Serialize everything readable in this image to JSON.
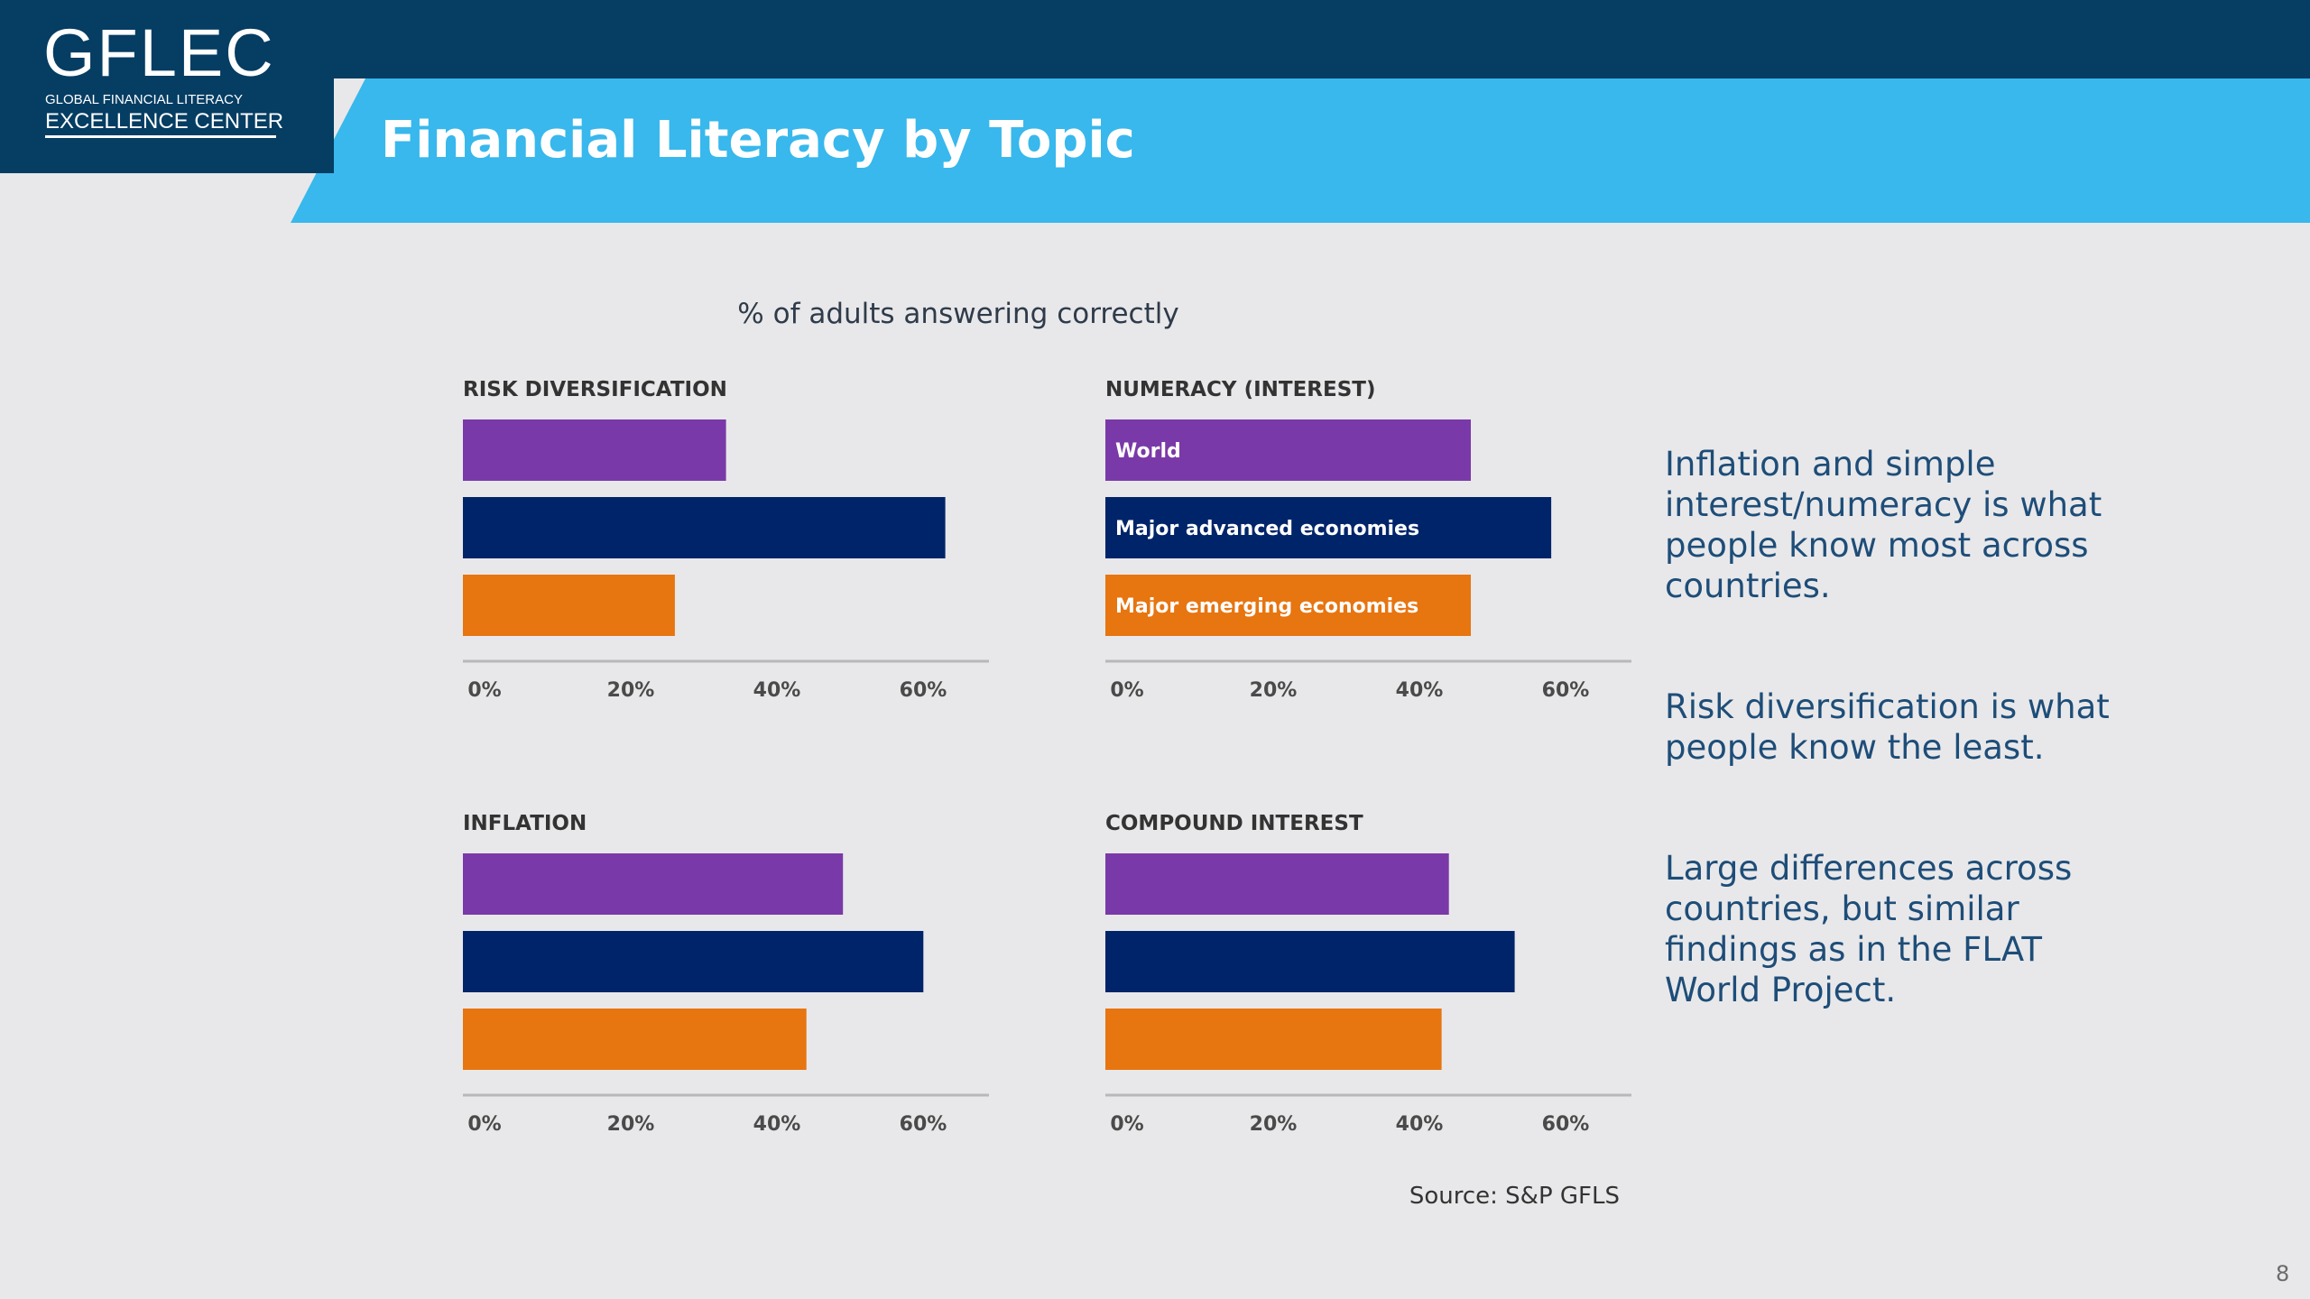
{
  "logo": {
    "main": "GFLEC",
    "small": "GLOBAL FINANCIAL LITERACY",
    "sub": "EXCELLENCE CENTER"
  },
  "slide_title": "Financial Literacy by Topic",
  "chart_subtitle": "% of adults answering correctly",
  "colors": {
    "header_dark": "#053d63",
    "header_light": "#38b8ec",
    "background": "#e8e8ea",
    "world": "#7a39a8",
    "advanced": "#00246a",
    "emerging": "#e77510",
    "axis": "#b8b8bc",
    "text_dark": "#333333",
    "callout_text": "#1e4d78"
  },
  "chart_data": [
    {
      "type": "bar",
      "orientation": "horizontal",
      "title": "RISK DIVERSIFICATION",
      "categories": [
        "World",
        "Major advanced economies",
        "Major emerging economies"
      ],
      "values": [
        36,
        66,
        29
      ],
      "unit": "%",
      "xlim": [
        0,
        72
      ],
      "ticks": [
        "0%",
        "20%",
        "40%",
        "60%"
      ],
      "tick_values": [
        0,
        20,
        40,
        60
      ],
      "category_labels_shown": false,
      "grid": false
    },
    {
      "type": "bar",
      "orientation": "horizontal",
      "title": "NUMERACY (INTEREST)",
      "categories": [
        "World",
        "Major advanced economies",
        "Major emerging economies"
      ],
      "values": [
        50,
        61,
        50
      ],
      "unit": "%",
      "xlim": [
        0,
        72
      ],
      "ticks": [
        "0%",
        "20%",
        "40%",
        "60%"
      ],
      "tick_values": [
        0,
        20,
        40,
        60
      ],
      "category_labels_shown": true,
      "grid": false
    },
    {
      "type": "bar",
      "orientation": "horizontal",
      "title": "INFLATION",
      "categories": [
        "World",
        "Major advanced economies",
        "Major emerging economies"
      ],
      "values": [
        52,
        63,
        47
      ],
      "unit": "%",
      "xlim": [
        0,
        72
      ],
      "ticks": [
        "0%",
        "20%",
        "40%",
        "60%"
      ],
      "tick_values": [
        0,
        20,
        40,
        60
      ],
      "category_labels_shown": false,
      "grid": false
    },
    {
      "type": "bar",
      "orientation": "horizontal",
      "title": "COMPOUND INTEREST",
      "categories": [
        "World",
        "Major advanced economies",
        "Major emerging economies"
      ],
      "values": [
        47,
        56,
        46
      ],
      "unit": "%",
      "xlim": [
        0,
        72
      ],
      "ticks": [
        "0%",
        "20%",
        "40%",
        "60%"
      ],
      "tick_values": [
        0,
        20,
        40,
        60
      ],
      "category_labels_shown": false,
      "grid": false
    }
  ],
  "callouts": [
    "Inflation and simple interest/numeracy is what people know most across countries.",
    "Risk diversification is what people know the least.",
    "Large differences across countries, but similar findings as in the FLAT World Project."
  ],
  "source": "Source: S&P GFLS",
  "page_number": "8"
}
